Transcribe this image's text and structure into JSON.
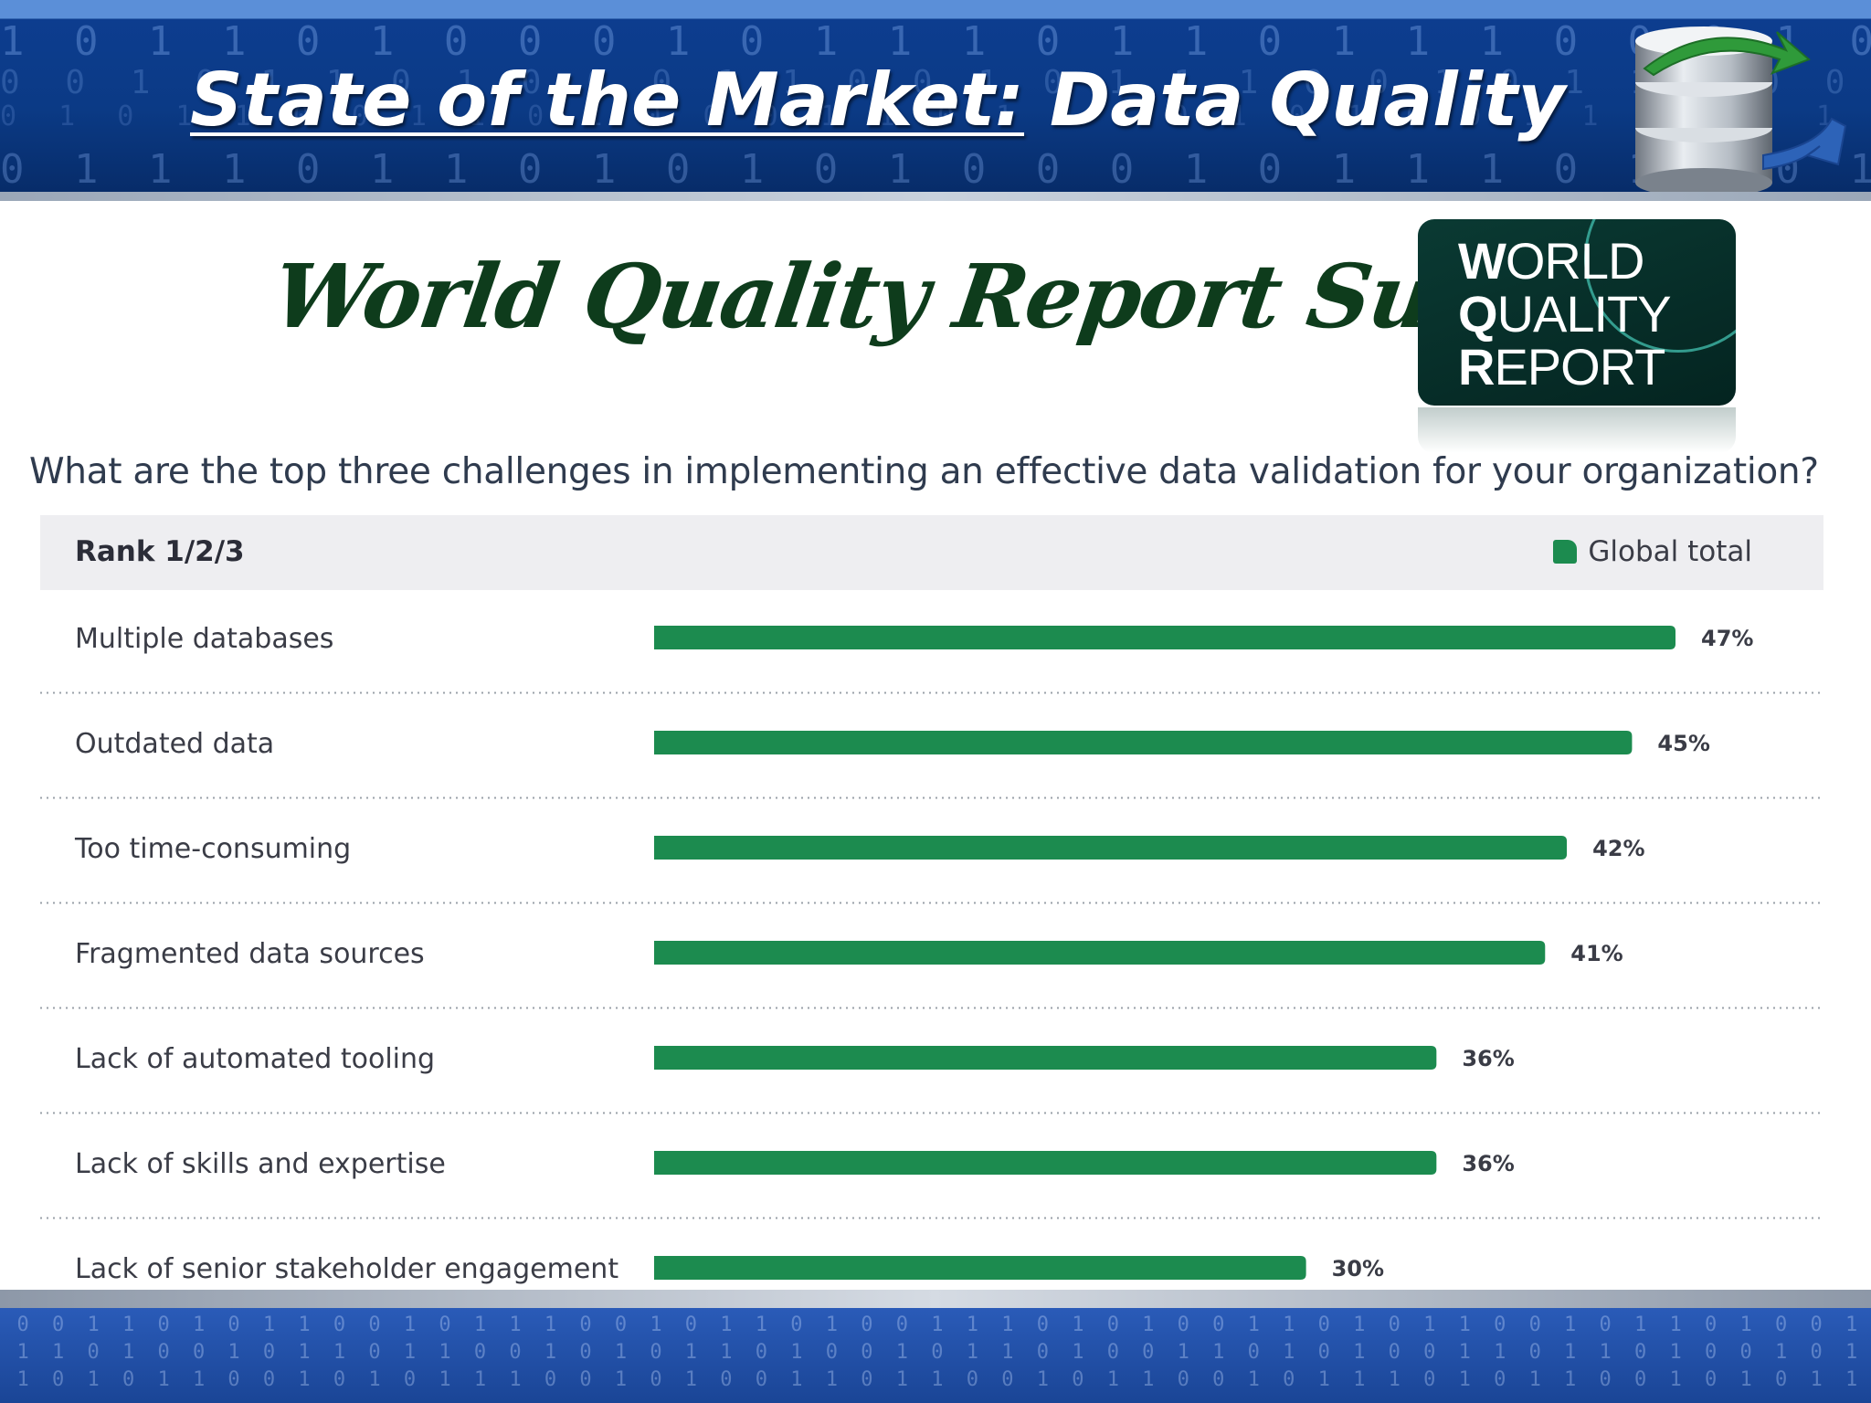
{
  "header": {
    "title_underlined": "State of the Market:",
    "title_rest": " Data Quality"
  },
  "survey": {
    "title": "World Quality Report Survey"
  },
  "logo": {
    "line1_cap": "W",
    "line1_rest": "ORLD",
    "line2_cap": "Q",
    "line2_rest": "UALITY",
    "line3_cap": "R",
    "line3_rest": "EPORT"
  },
  "question": "What are the top three challenges in implementing an effective data validation for your organization?",
  "chart_data": {
    "type": "bar",
    "orientation": "horizontal",
    "header_label": "Rank 1/2/3",
    "categories": [
      "Multiple databases",
      "Outdated data",
      "Too time-consuming",
      "Fragmented data sources",
      "Lack of automated tooling",
      "Lack of skills and expertise",
      "Lack of senior stakeholder engagement"
    ],
    "series": [
      {
        "name": "Global total",
        "values": [
          47,
          45,
          42,
          41,
          36,
          36,
          30
        ],
        "value_labels": [
          "47%",
          "45%",
          "42%",
          "41%",
          "36%",
          "36%",
          "30%"
        ]
      }
    ],
    "xlim": [
      0,
      50
    ],
    "legend_position": "top-right",
    "grid": false,
    "bar_color": "#1c8b4f"
  }
}
